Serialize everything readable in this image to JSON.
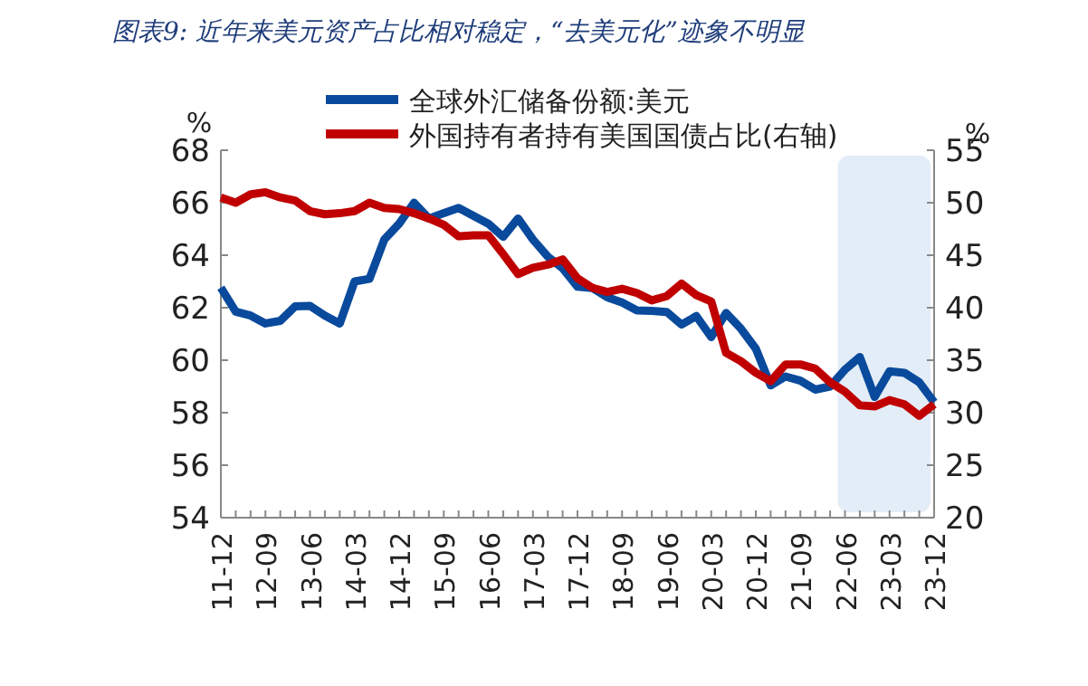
{
  "chart_data": {
    "type": "line",
    "title": "图表9:  近年来美元资产占比相对稳定，“去美元化”迹象不明显",
    "categories": [
      "11-12",
      null,
      null,
      "12-09",
      null,
      null,
      "13-06",
      null,
      null,
      "14-03",
      null,
      null,
      "14-12",
      null,
      null,
      "15-09",
      null,
      null,
      "16-06",
      null,
      null,
      "17-03",
      null,
      null,
      "17-12",
      null,
      null,
      "18-09",
      null,
      null,
      "19-06",
      null,
      null,
      "20-03",
      null,
      null,
      "20-12",
      null,
      null,
      "21-09",
      null,
      null,
      "22-06",
      null,
      null,
      "23-03",
      null,
      null,
      "23-12"
    ],
    "series": [
      {
        "name": "全球外汇储备份额:美元",
        "color": "#0a4a9c",
        "values": [
          62.76,
          61.85,
          61.7,
          61.4,
          61.5,
          62.05,
          62.07,
          61.7,
          61.4,
          63.0,
          63.1,
          64.6,
          65.2,
          66.0,
          65.4,
          65.6,
          65.8,
          65.5,
          65.2,
          64.7,
          65.4,
          64.6,
          63.95,
          63.5,
          62.8,
          62.75,
          62.4,
          62.2,
          61.9,
          61.88,
          61.84,
          61.36,
          61.68,
          60.88,
          61.8,
          61.2,
          60.44,
          59.04,
          59.38,
          59.22,
          58.88,
          59.0,
          59.64,
          60.12,
          58.6,
          59.58,
          59.52,
          59.16,
          58.4
        ]
      },
      {
        "name": "外国持有者持有美国国债占比(右轴)",
        "color": "#c00000",
        "axis": "y2",
        "values": [
          50.5,
          50.0,
          50.8,
          51.0,
          50.5,
          50.2,
          49.2,
          48.9,
          49.0,
          49.2,
          50.0,
          49.5,
          49.4,
          49.0,
          48.5,
          47.9,
          46.8,
          46.9,
          46.9,
          45.1,
          43.2,
          43.8,
          44.1,
          44.6,
          42.8,
          41.9,
          41.5,
          41.8,
          41.4,
          40.7,
          41.1,
          42.3,
          41.2,
          40.6,
          35.7,
          34.9,
          33.8,
          33.0,
          34.6,
          34.6,
          34.2,
          32.9,
          32.0,
          30.7,
          30.6,
          31.2,
          30.8,
          29.7,
          30.8
        ]
      }
    ],
    "ylabel": "%",
    "y2label": "%",
    "ylim": [
      54,
      68
    ],
    "yticks": [
      54,
      56,
      58,
      60,
      62,
      64,
      66,
      68
    ],
    "y2lim": [
      20,
      55
    ],
    "y2ticks": [
      20,
      25,
      30,
      35,
      40,
      45,
      50,
      55
    ],
    "legend": "top",
    "grid": false,
    "marker": "none",
    "line_style": "solid"
  }
}
